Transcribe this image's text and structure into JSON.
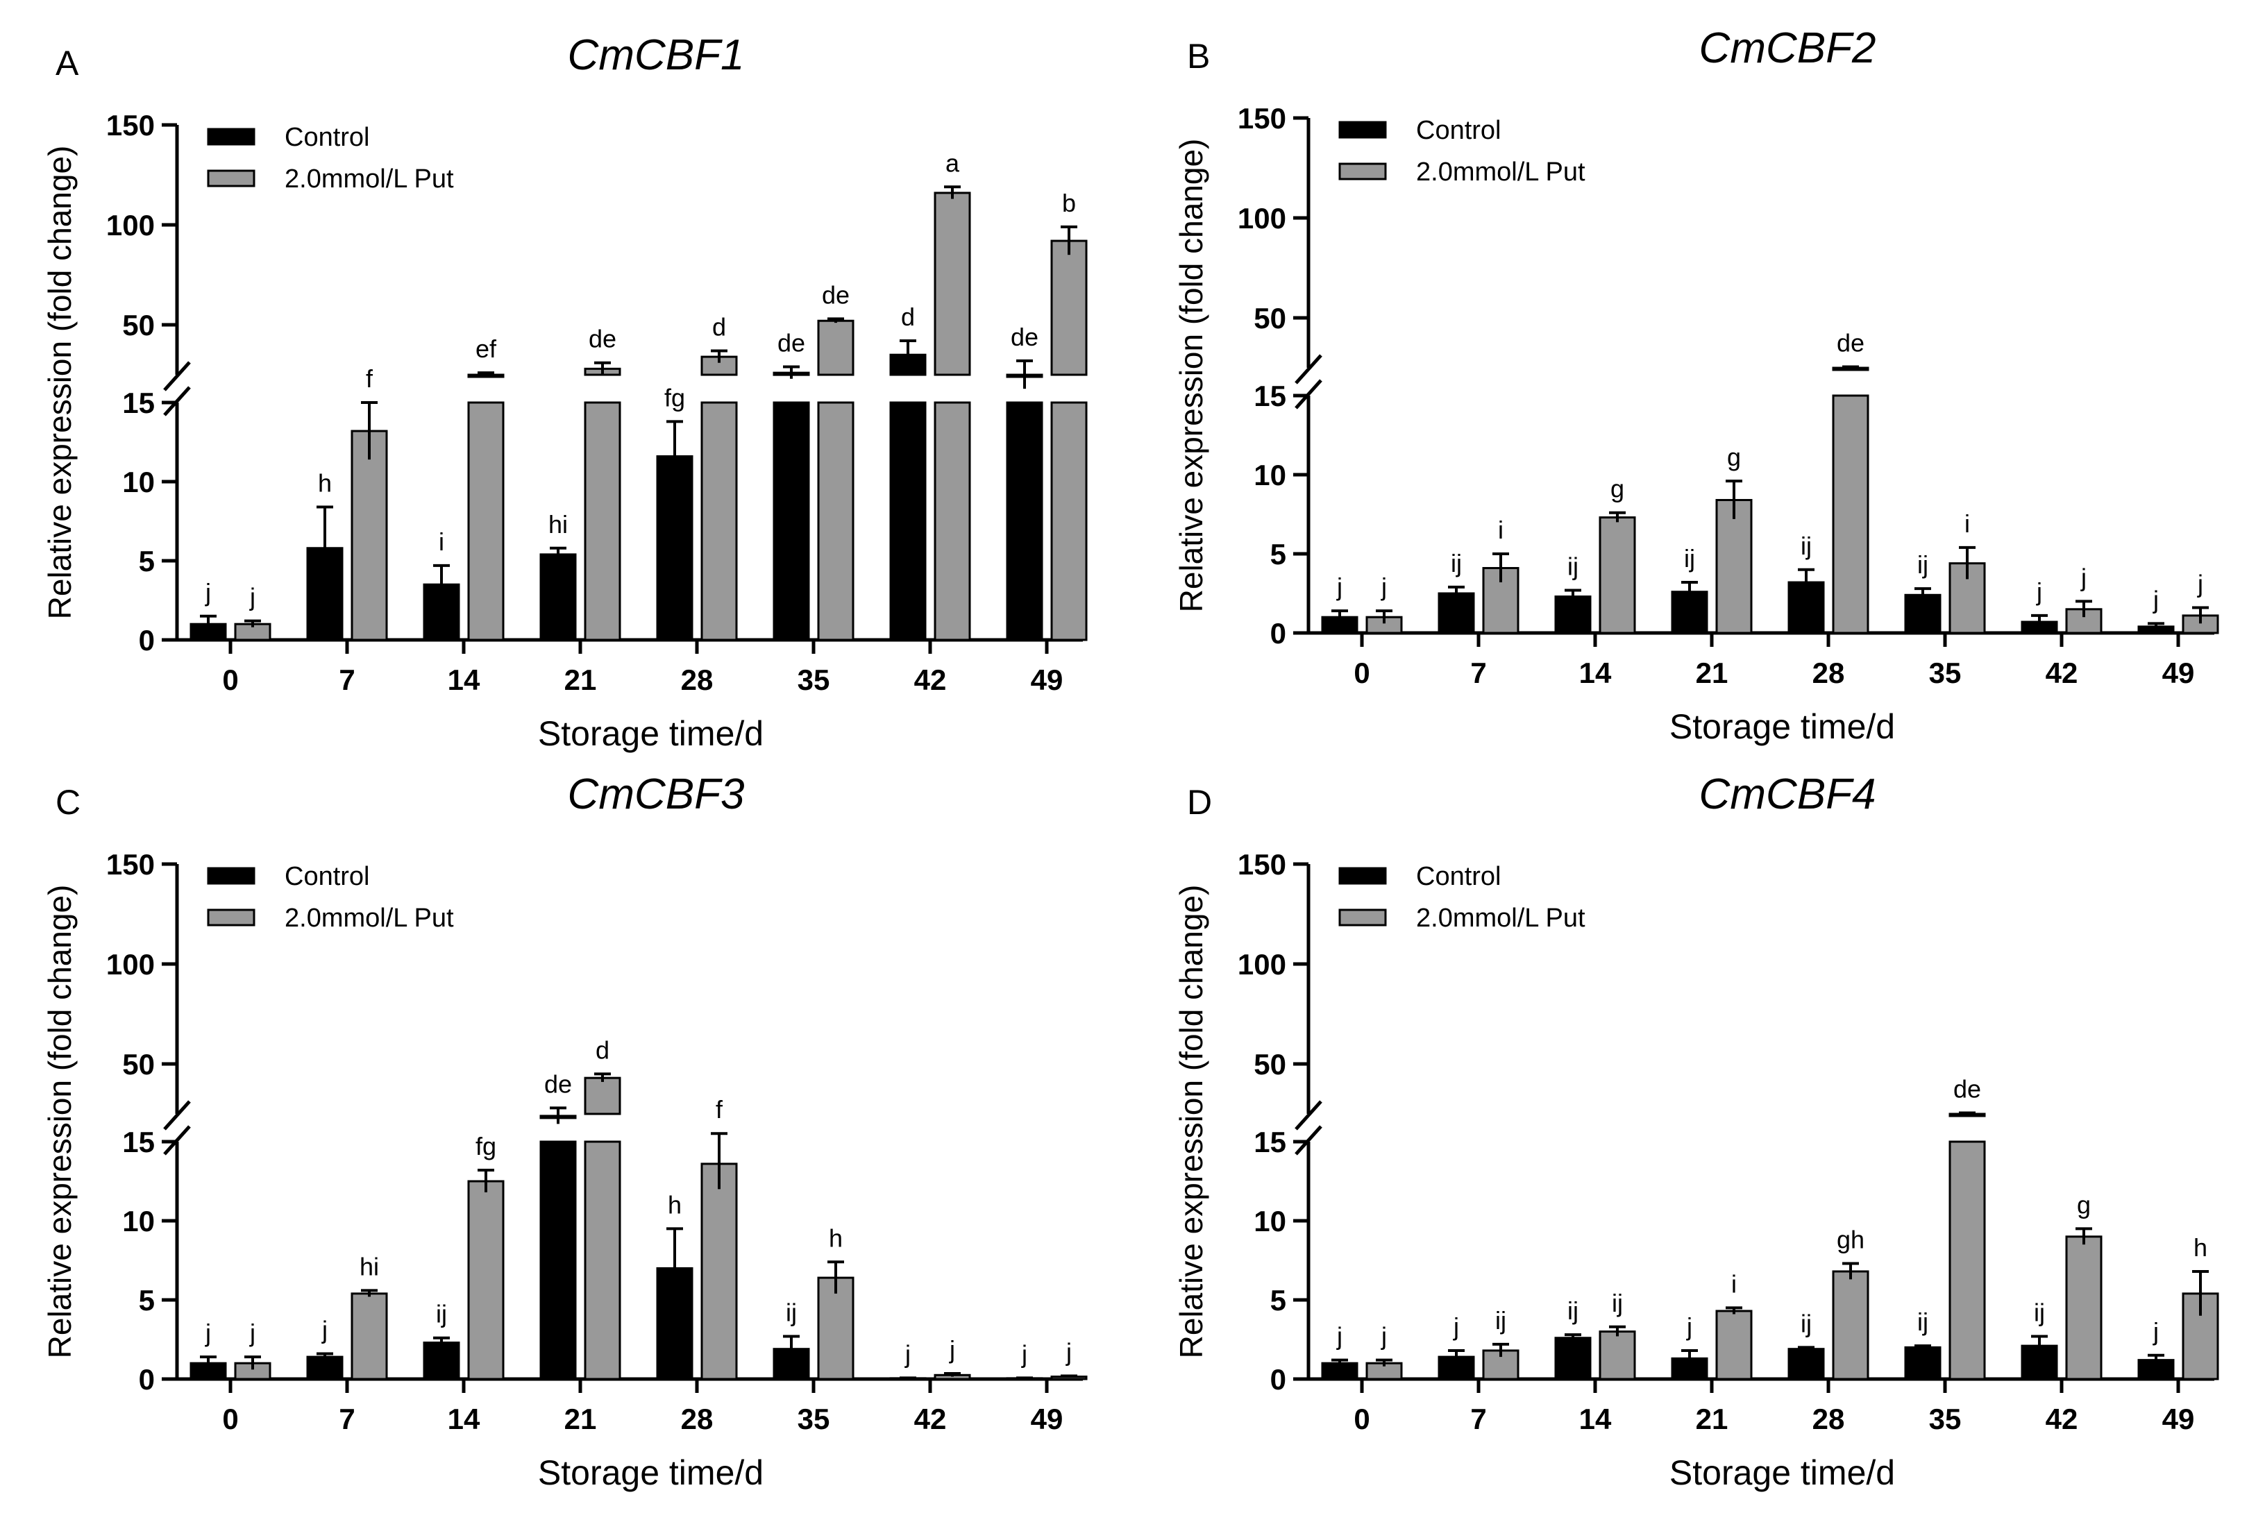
{
  "chart_data": [
    {
      "type": "bar",
      "panel": "A",
      "title": "CmCBF1",
      "xlabel": "Storage time/d",
      "ylabel": "Relative expression (fold change)",
      "categories": [
        "0",
        "7",
        "14",
        "21",
        "28",
        "35",
        "42",
        "49"
      ],
      "y_axis_break": [
        15,
        25
      ],
      "lower_ticks": [
        "0",
        "5",
        "10",
        "15"
      ],
      "upper_ticks": [
        "50",
        "100",
        "150"
      ],
      "series": [
        {
          "name": "Control",
          "color": "#000000",
          "values": [
            1.0,
            5.8,
            3.5,
            5.4,
            11.6,
            26,
            35,
            25
          ],
          "errors": [
            0.5,
            2.6,
            1.2,
            0.4,
            2.2,
            3,
            7,
            7
          ],
          "labels": [
            "j",
            "h",
            "i",
            "hi",
            "fg",
            "de",
            "d",
            "de"
          ]
        },
        {
          "name": "2.0mmol/L Put",
          "color": "#999999",
          "values": [
            1.0,
            13.2,
            25,
            28,
            34,
            52,
            116,
            92
          ],
          "errors": [
            0.2,
            1.8,
            1,
            3,
            3,
            1,
            3,
            7
          ],
          "labels": [
            "j",
            "f",
            "ef",
            "de",
            "d",
            "de",
            "a",
            "b"
          ]
        }
      ]
    },
    {
      "type": "bar",
      "panel": "B",
      "title": "CmCBF2",
      "xlabel": "Storage time/d",
      "ylabel": "Relative expression (fold change)",
      "categories": [
        "0",
        "7",
        "14",
        "21",
        "28",
        "35",
        "42",
        "49"
      ],
      "y_axis_break": [
        15,
        25
      ],
      "lower_ticks": [
        "0",
        "5",
        "10",
        "15"
      ],
      "upper_ticks": [
        "50",
        "100",
        "150"
      ],
      "series": [
        {
          "name": "Control",
          "color": "#000000",
          "values": [
            1.0,
            2.5,
            2.3,
            2.6,
            3.2,
            2.4,
            0.7,
            0.4
          ],
          "errors": [
            0.4,
            0.4,
            0.4,
            0.6,
            0.8,
            0.4,
            0.4,
            0.2
          ],
          "labels": [
            "j",
            "ij",
            "ij",
            "ij",
            "ij",
            "ij",
            "j",
            "j"
          ]
        },
        {
          "name": "2.0mmol/L Put",
          "color": "#999999",
          "values": [
            1.0,
            4.1,
            7.3,
            8.4,
            25,
            4.4,
            1.5,
            1.1
          ],
          "errors": [
            0.4,
            0.9,
            0.3,
            1.2,
            0.5,
            1.0,
            0.5,
            0.5
          ],
          "labels": [
            "j",
            "i",
            "g",
            "g",
            "de",
            "i",
            "j",
            "j"
          ]
        }
      ]
    },
    {
      "type": "bar",
      "panel": "C",
      "title": "CmCBF3",
      "xlabel": "Storage time/d",
      "ylabel": "Relative expression (fold change)",
      "categories": [
        "0",
        "7",
        "14",
        "21",
        "28",
        "35",
        "42",
        "49"
      ],
      "y_axis_break": [
        15,
        25
      ],
      "lower_ticks": [
        "0",
        "5",
        "10",
        "15"
      ],
      "upper_ticks": [
        "50",
        "100",
        "150"
      ],
      "series": [
        {
          "name": "Control",
          "color": "#000000",
          "values": [
            1.0,
            1.4,
            2.3,
            24,
            7.0,
            1.9,
            0.05,
            0.05
          ],
          "errors": [
            0.4,
            0.2,
            0.3,
            4,
            2.5,
            0.8,
            0.02,
            0.02
          ],
          "labels": [
            "j",
            "j",
            "ij",
            "de",
            "h",
            "ij",
            "j",
            "j"
          ]
        },
        {
          "name": "2.0mmol/L Put",
          "color": "#999999",
          "values": [
            1.0,
            5.4,
            12.5,
            43,
            13.6,
            6.4,
            0.25,
            0.15
          ],
          "errors": [
            0.4,
            0.2,
            0.7,
            2,
            1.6,
            1.0,
            0.1,
            0.05
          ],
          "labels": [
            "j",
            "hi",
            "fg",
            "d",
            "f",
            "h",
            "j",
            "j"
          ]
        }
      ]
    },
    {
      "type": "bar",
      "panel": "D",
      "title": "CmCBF4",
      "xlabel": "Storage time/d",
      "ylabel": "Relative expression (fold change)",
      "categories": [
        "0",
        "7",
        "14",
        "21",
        "28",
        "35",
        "42",
        "49"
      ],
      "y_axis_break": [
        15,
        25
      ],
      "lower_ticks": [
        "0",
        "5",
        "10",
        "15"
      ],
      "upper_ticks": [
        "50",
        "100",
        "150"
      ],
      "series": [
        {
          "name": "Control",
          "color": "#000000",
          "values": [
            1.0,
            1.4,
            2.6,
            1.3,
            1.9,
            2.0,
            2.1,
            1.2
          ],
          "errors": [
            0.2,
            0.4,
            0.2,
            0.5,
            0.1,
            0.1,
            0.6,
            0.3
          ],
          "labels": [
            "j",
            "j",
            "ij",
            "j",
            "ij",
            "ij",
            "ij",
            "j"
          ]
        },
        {
          "name": "2.0mmol/L Put",
          "color": "#999999",
          "values": [
            1.0,
            1.8,
            3.0,
            4.3,
            6.8,
            25,
            9.0,
            5.4
          ],
          "errors": [
            0.2,
            0.4,
            0.3,
            0.2,
            0.5,
            0.5,
            0.5,
            1.4
          ],
          "labels": [
            "j",
            "ij",
            "ij",
            "i",
            "gh",
            "de",
            "g",
            "h"
          ]
        }
      ]
    }
  ]
}
